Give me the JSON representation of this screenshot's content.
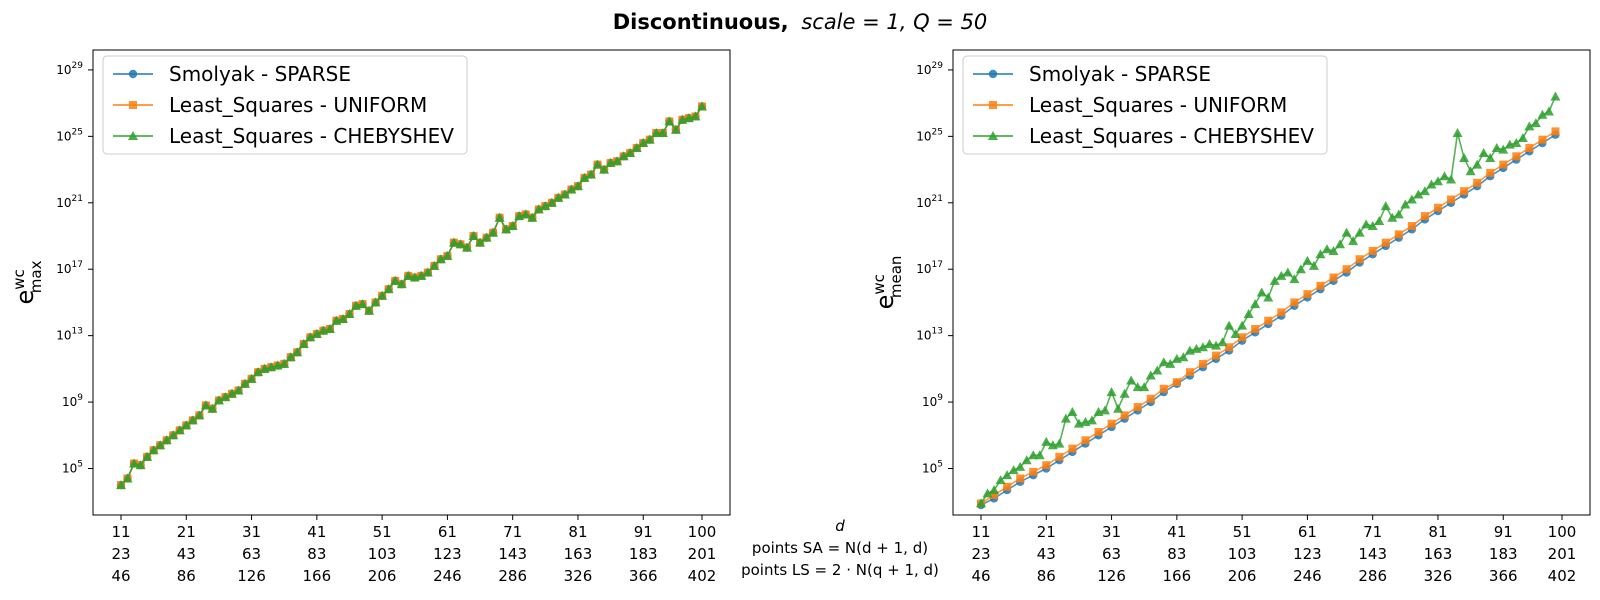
{
  "figure": {
    "title_bold": "Discontinuous,",
    "title_math": "scale = 1, Q = 50"
  },
  "xaxis_rows": {
    "row1_label": "d",
    "row2_label": "points SA = N(d + 1, d)",
    "row3_label": "points LS = 2 · N(q + 1, d)",
    "ticks_d": [
      "11",
      "21",
      "31",
      "41",
      "51",
      "61",
      "71",
      "81",
      "91",
      "100"
    ],
    "ticks_sa": [
      "23",
      "43",
      "63",
      "83",
      "103",
      "123",
      "143",
      "163",
      "183",
      "201"
    ],
    "ticks_ls": [
      "46",
      "86",
      "126",
      "166",
      "206",
      "246",
      "286",
      "326",
      "366",
      "402"
    ]
  },
  "colors": {
    "smolyak": "#1f77b4",
    "uniform": "#ff7f0e",
    "chebyshev": "#2ca02c"
  },
  "chart_data": [
    {
      "type": "line",
      "ylabel": "e_max^wc",
      "ylabel_main": "e",
      "ylabel_sup": "wc",
      "ylabel_sub": "max",
      "yscale": "log",
      "xlim": [
        11,
        100
      ],
      "ylim_log10": [
        2.2,
        30.2
      ],
      "yticks": [
        {
          "exp": 5,
          "base": "10",
          "sup": "5"
        },
        {
          "exp": 9,
          "base": "10",
          "sup": "9"
        },
        {
          "exp": 13,
          "base": "10",
          "sup": "13"
        },
        {
          "exp": 17,
          "base": "10",
          "sup": "17"
        },
        {
          "exp": 21,
          "base": "10",
          "sup": "21"
        },
        {
          "exp": 25,
          "base": "10",
          "sup": "25"
        },
        {
          "exp": 29,
          "base": "10",
          "sup": "29"
        }
      ],
      "legend_position": "top-left",
      "grid": false,
      "series": [
        {
          "name": "Smolyak - SPARSE",
          "marker": "circle",
          "x": [
            11,
            12,
            13,
            14,
            15,
            16,
            17,
            18,
            19,
            20,
            21,
            22,
            23,
            24,
            25,
            26,
            27,
            28,
            29,
            30,
            31,
            32,
            33,
            34,
            35,
            36,
            37,
            38,
            39,
            40,
            41,
            42,
            43,
            44,
            45,
            46,
            47,
            48,
            49,
            50,
            51,
            52,
            53,
            54,
            55,
            56,
            57,
            58,
            59,
            60,
            61,
            62,
            63,
            64,
            65,
            66,
            67,
            68,
            69,
            70,
            71,
            72,
            73,
            74,
            75,
            76,
            77,
            78,
            79,
            80,
            81,
            82,
            83,
            84,
            85,
            86,
            87,
            88,
            89,
            90,
            91,
            92,
            93,
            94,
            95,
            96,
            97,
            98,
            99,
            100
          ],
          "log10y": [
            4.0,
            4.4,
            5.3,
            5.2,
            5.7,
            6.1,
            6.4,
            6.7,
            7.0,
            7.3,
            7.6,
            7.9,
            8.2,
            8.8,
            8.6,
            9.1,
            9.3,
            9.5,
            9.7,
            10.1,
            10.4,
            10.8,
            11.0,
            11.1,
            11.2,
            11.3,
            11.7,
            12.0,
            12.5,
            12.9,
            13.1,
            13.3,
            13.4,
            13.9,
            14.0,
            14.3,
            14.8,
            14.9,
            14.5,
            15.0,
            15.4,
            15.8,
            16.3,
            16.1,
            16.6,
            16.5,
            16.6,
            16.8,
            17.2,
            17.6,
            17.8,
            18.6,
            18.5,
            18.3,
            19.0,
            18.6,
            18.9,
            19.2,
            20.1,
            19.4,
            19.6,
            20.2,
            20.3,
            20.1,
            20.6,
            20.8,
            21.0,
            21.3,
            21.5,
            21.8,
            22.0,
            22.5,
            22.7,
            23.3,
            23.0,
            23.4,
            23.5,
            23.8,
            24.0,
            24.3,
            24.6,
            24.8,
            25.2,
            25.2,
            25.9,
            25.4,
            26.0,
            26.1,
            26.2,
            26.8
          ],
          "scale_note": "log10 of error values"
        },
        {
          "name": "Least_Squares - UNIFORM",
          "marker": "square",
          "same_as": "Smolyak - SPARSE (overlapping)"
        },
        {
          "name": "Least_Squares - CHEBYSHEV",
          "marker": "triangle",
          "same_as": "Smolyak - SPARSE (overlapping)"
        }
      ]
    },
    {
      "type": "line",
      "ylabel": "e_mean^wc",
      "ylabel_main": "e",
      "ylabel_sup": "wc",
      "ylabel_sub": "mean",
      "yscale": "log",
      "xlim": [
        11,
        100
      ],
      "ylim_log10": [
        2.2,
        30.2
      ],
      "yticks": [
        {
          "exp": 5,
          "base": "10",
          "sup": "5"
        },
        {
          "exp": 9,
          "base": "10",
          "sup": "9"
        },
        {
          "exp": 13,
          "base": "10",
          "sup": "13"
        },
        {
          "exp": 17,
          "base": "10",
          "sup": "17"
        },
        {
          "exp": 21,
          "base": "10",
          "sup": "21"
        },
        {
          "exp": 25,
          "base": "10",
          "sup": "25"
        },
        {
          "exp": 29,
          "base": "10",
          "sup": "29"
        }
      ],
      "legend_position": "top-left",
      "grid": false,
      "series": [
        {
          "name": "Smolyak - SPARSE",
          "marker": "circle",
          "x": [
            11,
            13,
            15,
            17,
            19,
            21,
            23,
            25,
            27,
            29,
            31,
            33,
            35,
            37,
            39,
            41,
            43,
            45,
            47,
            49,
            51,
            53,
            55,
            57,
            59,
            61,
            63,
            65,
            67,
            69,
            71,
            73,
            75,
            77,
            79,
            81,
            83,
            85,
            87,
            89,
            91,
            93,
            95,
            97,
            99
          ],
          "log10y": [
            2.8,
            3.2,
            3.7,
            4.2,
            4.6,
            5.0,
            5.5,
            6.0,
            6.5,
            7.0,
            7.5,
            8.0,
            8.5,
            9.0,
            9.6,
            10.1,
            10.6,
            11.1,
            11.6,
            12.1,
            12.7,
            13.2,
            13.7,
            14.2,
            14.8,
            15.3,
            15.8,
            16.3,
            16.8,
            17.4,
            17.9,
            18.4,
            18.9,
            19.4,
            20.0,
            20.5,
            21.0,
            21.5,
            22.0,
            22.6,
            23.1,
            23.6,
            24.1,
            24.6,
            25.1
          ]
        },
        {
          "name": "Least_Squares - UNIFORM",
          "marker": "square",
          "x": [
            11,
            13,
            15,
            17,
            19,
            21,
            23,
            25,
            27,
            29,
            31,
            33,
            35,
            37,
            39,
            41,
            43,
            45,
            47,
            49,
            51,
            53,
            55,
            57,
            59,
            61,
            63,
            65,
            67,
            69,
            71,
            73,
            75,
            77,
            79,
            81,
            83,
            85,
            87,
            89,
            91,
            93,
            95,
            97,
            99
          ],
          "log10y": [
            2.9,
            3.4,
            3.9,
            4.4,
            4.8,
            5.2,
            5.7,
            6.2,
            6.7,
            7.2,
            7.7,
            8.2,
            8.7,
            9.2,
            9.8,
            10.2,
            10.8,
            11.3,
            11.8,
            12.3,
            12.9,
            13.4,
            13.9,
            14.4,
            15.0,
            15.5,
            16.0,
            16.5,
            17.0,
            17.6,
            18.1,
            18.6,
            19.1,
            19.6,
            20.2,
            20.7,
            21.2,
            21.7,
            22.2,
            22.8,
            23.3,
            23.8,
            24.3,
            24.8,
            25.3
          ]
        },
        {
          "name": "Least_Squares - CHEBYSHEV",
          "marker": "triangle",
          "x": [
            11,
            12,
            13,
            14,
            15,
            16,
            17,
            18,
            19,
            20,
            21,
            22,
            23,
            24,
            25,
            26,
            27,
            28,
            29,
            30,
            31,
            32,
            33,
            34,
            35,
            36,
            37,
            38,
            39,
            40,
            41,
            42,
            43,
            44,
            45,
            46,
            47,
            48,
            49,
            50,
            51,
            52,
            53,
            54,
            55,
            56,
            57,
            58,
            59,
            60,
            61,
            62,
            63,
            64,
            65,
            66,
            67,
            68,
            69,
            70,
            71,
            72,
            73,
            74,
            75,
            76,
            77,
            78,
            79,
            80,
            81,
            82,
            83,
            84,
            85,
            86,
            87,
            88,
            89,
            90,
            91,
            92,
            93,
            94,
            95,
            96,
            97,
            98,
            99
          ],
          "log10y": [
            2.9,
            3.5,
            3.7,
            4.3,
            4.6,
            4.9,
            5.1,
            5.5,
            5.8,
            5.8,
            6.6,
            6.4,
            6.5,
            8.0,
            8.4,
            7.7,
            7.8,
            7.9,
            8.4,
            8.5,
            9.6,
            8.6,
            9.5,
            10.3,
            9.9,
            9.9,
            10.6,
            10.9,
            11.4,
            11.3,
            11.6,
            11.7,
            12.1,
            12.2,
            12.3,
            12.5,
            12.4,
            12.6,
            13.6,
            13.1,
            13.6,
            14.3,
            14.9,
            15.6,
            15.3,
            16.3,
            16.6,
            16.8,
            16.4,
            17.0,
            17.5,
            17.2,
            17.9,
            18.2,
            18.1,
            18.5,
            19.2,
            18.7,
            19.2,
            19.7,
            19.6,
            19.9,
            20.8,
            20.1,
            20.3,
            20.9,
            21.2,
            21.5,
            21.7,
            22.1,
            22.3,
            22.6,
            22.4,
            25.2,
            23.7,
            22.9,
            23.3,
            24.0,
            23.7,
            24.3,
            24.2,
            24.5,
            24.6,
            24.9,
            25.6,
            25.8,
            26.3,
            26.5,
            27.4
          ]
        }
      ]
    }
  ]
}
